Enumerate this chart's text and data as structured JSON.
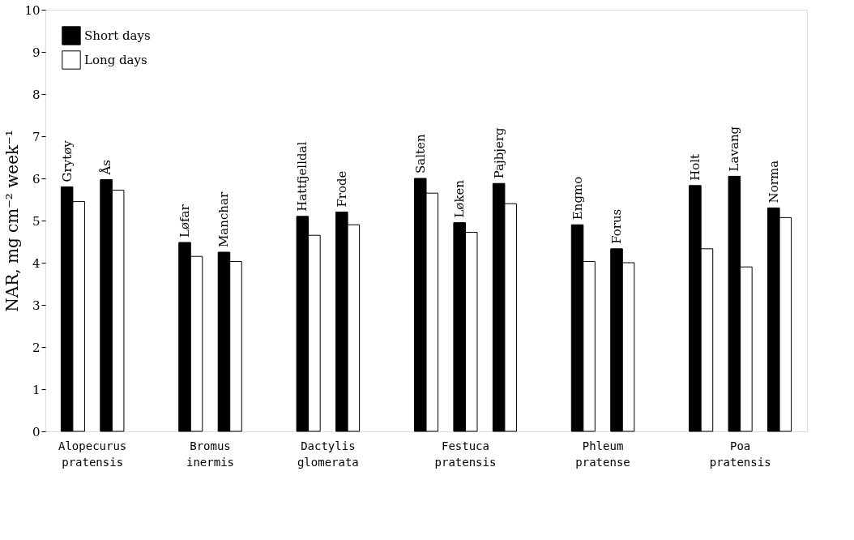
{
  "chart_data": {
    "type": "bar",
    "ylabel": "NAR, mg cm⁻² week⁻¹",
    "categories": [
      "Grytøy",
      "Ås",
      null,
      "Løfar",
      "Manchar",
      null,
      "Hattfjelldal",
      "Frode",
      null,
      "Salten",
      "Løken",
      "Pajbjerg",
      null,
      "Engmo",
      "Forus",
      null,
      "Holt",
      "Lavang",
      "Norma"
    ],
    "series": [
      {
        "name": "Short days",
        "color": "#000000",
        "values": [
          5.8,
          5.97,
          null,
          4.48,
          4.25,
          null,
          5.1,
          5.2,
          null,
          6.0,
          4.95,
          5.88,
          null,
          4.9,
          4.33,
          null,
          5.83,
          6.05,
          5.3
        ]
      },
      {
        "name": "Long days",
        "color": "#ffffff",
        "values": [
          5.45,
          5.72,
          null,
          4.15,
          4.03,
          null,
          4.65,
          4.9,
          null,
          5.65,
          4.72,
          5.4,
          null,
          4.03,
          4.0,
          null,
          4.33,
          3.9,
          5.07
        ]
      }
    ],
    "ylim": [
      0,
      10
    ],
    "yticks": [
      0,
      1,
      2,
      3,
      4,
      5,
      6,
      7,
      8,
      9,
      10
    ],
    "grid": false,
    "legend": "top left",
    "annotations": [
      "Alopecurus pratensis",
      "Bromus inermis",
      "Dactylis glomerata",
      "Festuca pratensis",
      "Phleum pratense",
      "Poa pratensis"
    ]
  }
}
